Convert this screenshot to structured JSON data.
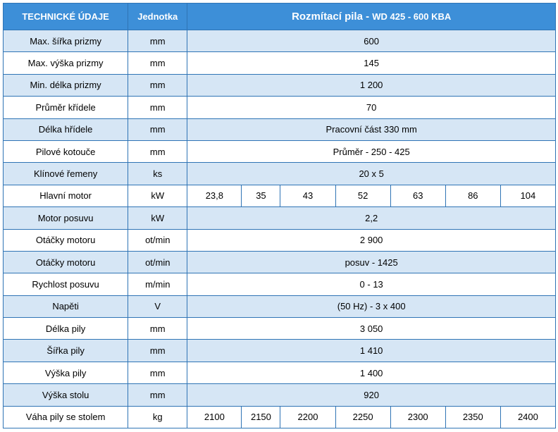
{
  "header": {
    "col1": "TECHNICKÉ ÚDAJE",
    "col2": "Jednotka",
    "title_main": "Rozmítací pila - ",
    "title_model": "WD 425 - 600 KBA"
  },
  "rows": [
    {
      "label": "Max. šířka prizmy",
      "unit": "mm",
      "value": "600"
    },
    {
      "label": "Max. výška prizmy",
      "unit": "mm",
      "value": "145"
    },
    {
      "label": "Min. délka prizmy",
      "unit": "mm",
      "value": "1 200"
    },
    {
      "label": "Průměr křídele",
      "unit": "mm",
      "value": "70"
    },
    {
      "label": "Délka hřídele",
      "unit": "mm",
      "value": "Pracovní  část  330 mm"
    },
    {
      "label": "Pilové kotouče",
      "unit": "mm",
      "value": "Průměr  - 250 - 425"
    },
    {
      "label": "Klínové řemeny",
      "unit": "ks",
      "value": "20 x 5"
    },
    {
      "label": "Hlavní motor",
      "unit": "kW",
      "values": [
        "23,8",
        "35",
        "43",
        "52",
        "63",
        "86",
        "104"
      ]
    },
    {
      "label": "Motor posuvu",
      "unit": "kW",
      "value": "2,2"
    },
    {
      "label": "Otáčky motoru",
      "unit": "ot/min",
      "value": "2 900"
    },
    {
      "label": "Otáčky  motoru",
      "unit": "ot/min",
      "value": "posuv - 1425"
    },
    {
      "label": "Rychlost posuvu",
      "unit": "m/min",
      "value": "0 - 13"
    },
    {
      "label": "Napěti",
      "unit": "V",
      "value": "(50 Hz) - 3 x 400"
    },
    {
      "label": "Délka pily",
      "unit": "mm",
      "value": "3 050"
    },
    {
      "label": "Šířka pily",
      "unit": "mm",
      "value": "1 410"
    },
    {
      "label": "Výška pily",
      "unit": "mm",
      "value": "1 400"
    },
    {
      "label": "Výška stolu",
      "unit": "mm",
      "value": "920"
    },
    {
      "label": "Váha pily se stolem",
      "unit": "kg",
      "values": [
        "2100",
        "2150",
        "2200",
        "2250",
        "2300",
        "2350",
        "2400"
      ]
    }
  ]
}
